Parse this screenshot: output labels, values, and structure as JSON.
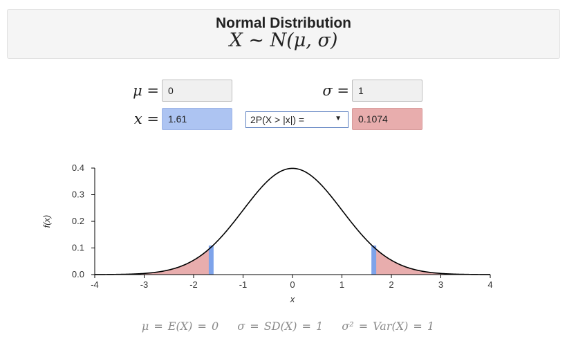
{
  "header": {
    "title": "Normal Distribution",
    "formula": "X ∼ N(μ, σ)"
  },
  "inputs": {
    "mu_label": "μ =",
    "mu_value": "0",
    "sigma_label": "σ =",
    "sigma_value": "1",
    "x_label": "x =",
    "x_value": "1.61",
    "probability_type": "2P(X > |x|) =",
    "result_value": "0.1074"
  },
  "colors": {
    "tail_fill": "#e8adad",
    "x_marker": "#7ea3ea",
    "curve": "#000000",
    "x_input_bg": "#adc4f2",
    "result_bg": "#e8adad"
  },
  "chart_data": {
    "type": "area",
    "function": "normal_pdf",
    "mu": 0,
    "sigma": 1,
    "x_marker": 1.61,
    "shaded": "two-tailed beyond ±1.61",
    "xlabel": "x",
    "ylabel": "f(x)",
    "xlim": [
      -4,
      4
    ],
    "ylim": [
      0,
      0.4
    ],
    "xticks": [
      "-4",
      "-3",
      "-2",
      "-1",
      "0",
      "1",
      "2",
      "3",
      "4"
    ],
    "yticks": [
      "0.0",
      "0.1",
      "0.2",
      "0.3",
      "0.4"
    ],
    "grid": false
  },
  "footer": {
    "mean": "μ = E(X) = 0",
    "sd": "σ = SD(X) = 1",
    "var": "σ² = Var(X) = 1"
  }
}
